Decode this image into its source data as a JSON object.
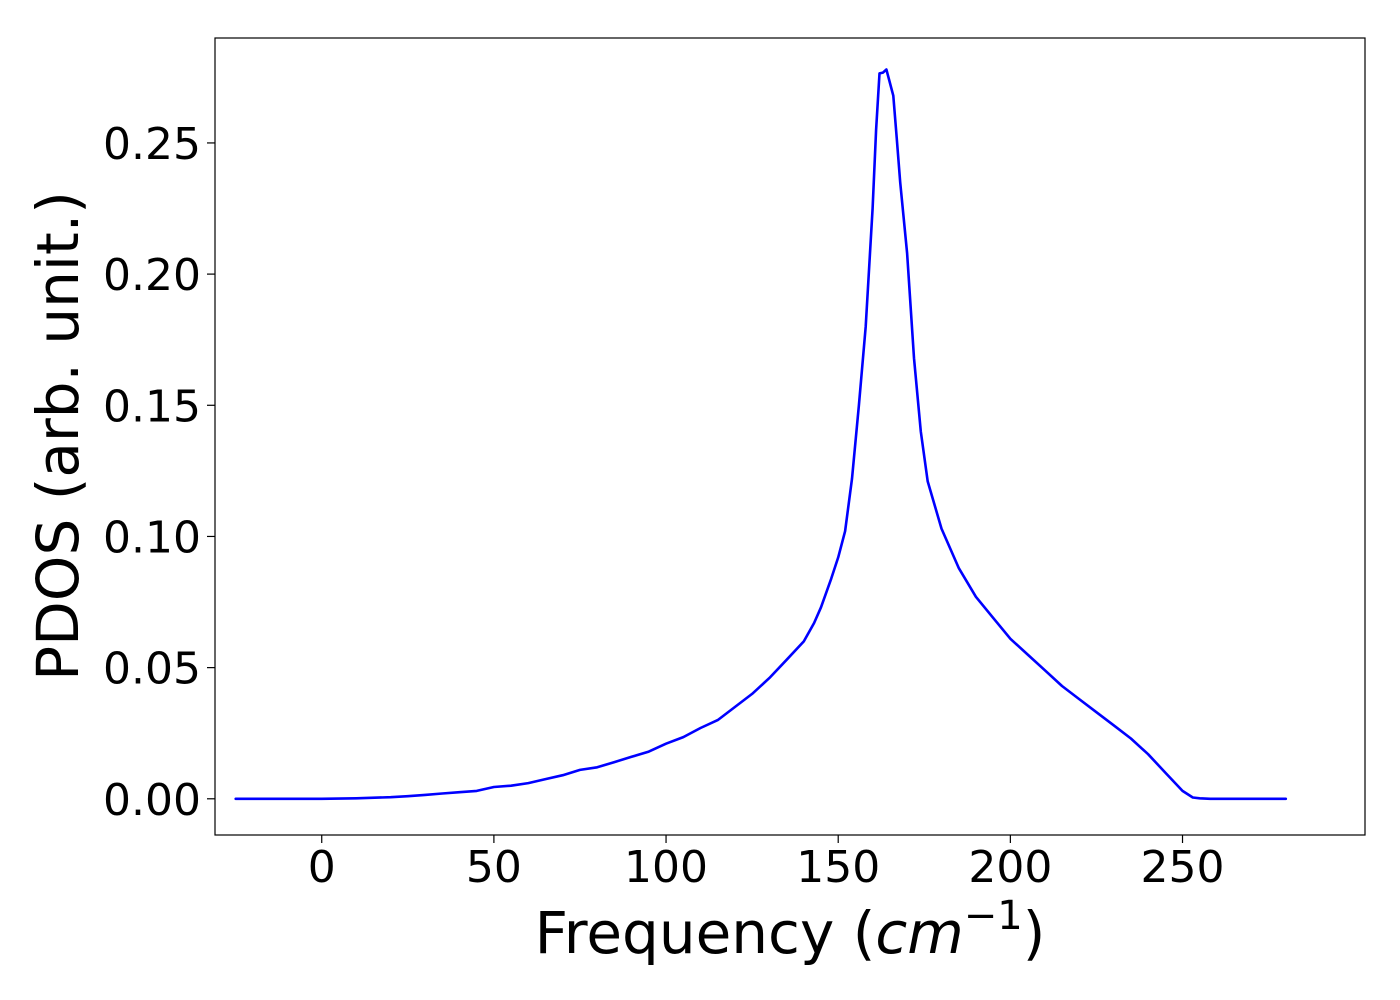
{
  "chart_data": {
    "type": "line",
    "title": "",
    "xlabel": "Frequency (",
    "xlabel_math": "cm",
    "xlabel_sup": "−1",
    "xlabel_close": ")",
    "ylabel": "PDOS (arb. unit.)",
    "xlim": [
      -31,
      303
    ],
    "ylim": [
      -0.0138,
      0.29
    ],
    "xticks": [
      0,
      50,
      100,
      150,
      200,
      250
    ],
    "xtick_labels": [
      "0",
      "50",
      "100",
      "150",
      "200",
      "250"
    ],
    "yticks": [
      0.0,
      0.05,
      0.1,
      0.15,
      0.2,
      0.25
    ],
    "ytick_labels": [
      "0.00",
      "0.05",
      "0.10",
      "0.15",
      "0.20",
      "0.25"
    ],
    "grid": false,
    "legend": "none",
    "series": [
      {
        "color": "#0000ff",
        "x": [
          -25,
          0,
          10,
          20,
          25,
          30,
          35,
          40,
          45,
          50,
          55,
          60,
          65,
          70,
          75,
          80,
          85,
          90,
          95,
          100,
          105,
          110,
          115,
          120,
          125,
          130,
          135,
          140,
          143,
          145,
          148,
          150,
          152,
          154,
          156,
          158,
          160,
          161,
          162,
          163,
          164,
          166,
          167,
          168,
          170,
          172,
          174,
          176,
          178,
          180,
          185,
          190,
          195,
          200,
          205,
          210,
          215,
          220,
          225,
          230,
          235,
          240,
          245,
          250,
          253,
          255,
          258,
          262,
          270,
          280
        ],
        "y": [
          0.0,
          0.0,
          0.0002,
          0.0006,
          0.001,
          0.0015,
          0.002,
          0.0025,
          0.003,
          0.0045,
          0.005,
          0.006,
          0.0075,
          0.009,
          0.011,
          0.012,
          0.014,
          0.016,
          0.018,
          0.021,
          0.0235,
          0.027,
          0.03,
          0.035,
          0.04,
          0.046,
          0.053,
          0.06,
          0.067,
          0.073,
          0.084,
          0.092,
          0.102,
          0.122,
          0.15,
          0.18,
          0.225,
          0.255,
          0.2765,
          0.2768,
          0.278,
          0.268,
          0.252,
          0.235,
          0.208,
          0.168,
          0.14,
          0.121,
          0.112,
          0.103,
          0.088,
          0.077,
          0.069,
          0.061,
          0.055,
          0.049,
          0.043,
          0.038,
          0.033,
          0.028,
          0.023,
          0.017,
          0.01,
          0.003,
          0.0005,
          0.0002,
          0.0,
          0.0,
          0.0,
          0.0
        ]
      }
    ]
  }
}
